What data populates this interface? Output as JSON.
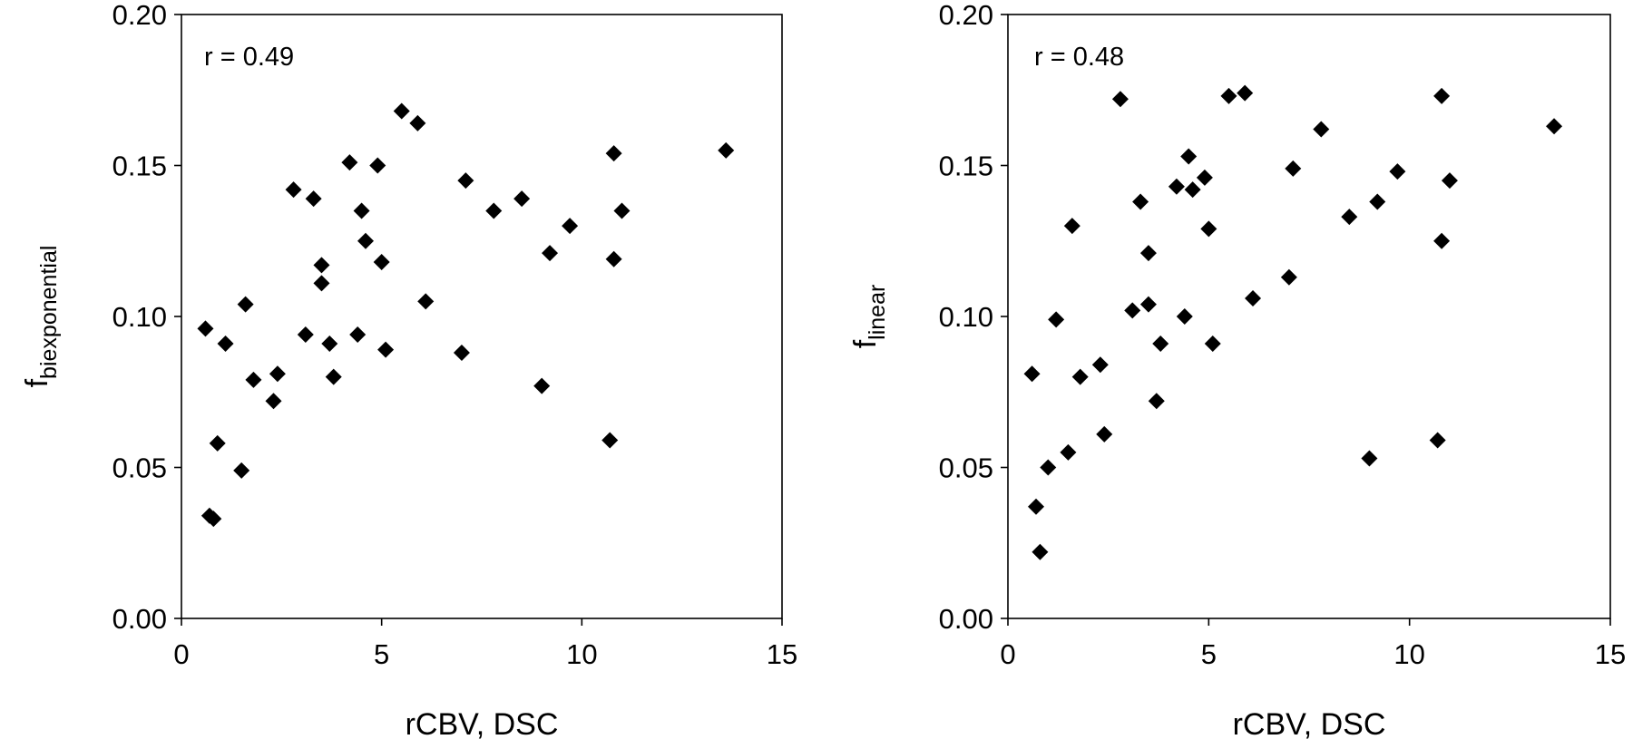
{
  "chart_data": [
    {
      "type": "scatter",
      "xlabel": "rCBV, DSC",
      "ylabel_main": "f",
      "ylabel_sub": "biexponential",
      "annotation": "r = 0.49",
      "xlim": [
        0,
        15
      ],
      "ylim": [
        0,
        0.2
      ],
      "xticks": [
        "0",
        "5",
        "10",
        "15"
      ],
      "yticks": [
        "0.00",
        "0.05",
        "0.10",
        "0.15",
        "0.20"
      ],
      "grid": false,
      "marker": "diamond",
      "x": [
        0.6,
        0.7,
        0.8,
        0.9,
        1.1,
        1.5,
        1.6,
        1.8,
        2.3,
        2.4,
        2.8,
        3.1,
        3.3,
        3.5,
        3.5,
        3.7,
        3.8,
        4.2,
        4.4,
        4.5,
        4.6,
        4.9,
        5.0,
        5.1,
        5.5,
        5.9,
        6.1,
        7.0,
        7.1,
        7.8,
        8.5,
        9.0,
        9.2,
        9.7,
        10.7,
        10.8,
        10.8,
        11.0,
        13.6
      ],
      "y": [
        0.096,
        0.034,
        0.033,
        0.058,
        0.091,
        0.049,
        0.104,
        0.079,
        0.072,
        0.081,
        0.142,
        0.094,
        0.139,
        0.117,
        0.111,
        0.091,
        0.08,
        0.151,
        0.094,
        0.135,
        0.125,
        0.15,
        0.118,
        0.089,
        0.168,
        0.164,
        0.105,
        0.088,
        0.145,
        0.135,
        0.139,
        0.077,
        0.121,
        0.13,
        0.059,
        0.154,
        0.119,
        0.135,
        0.155
      ]
    },
    {
      "type": "scatter",
      "xlabel": "rCBV, DSC",
      "ylabel_main": "f",
      "ylabel_sub": "linear",
      "annotation": "r = 0.48",
      "xlim": [
        0,
        15
      ],
      "ylim": [
        0,
        0.2
      ],
      "xticks": [
        "0",
        "5",
        "10",
        "15"
      ],
      "yticks": [
        "0.00",
        "0.05",
        "0.10",
        "0.15",
        "0.20"
      ],
      "grid": false,
      "marker": "diamond",
      "x": [
        0.6,
        0.7,
        0.8,
        1.0,
        1.2,
        1.5,
        1.6,
        1.8,
        2.3,
        2.4,
        2.8,
        3.1,
        3.3,
        3.5,
        3.5,
        3.7,
        3.8,
        4.2,
        4.4,
        4.5,
        4.6,
        4.9,
        5.0,
        5.1,
        5.5,
        5.9,
        6.1,
        7.0,
        7.1,
        7.8,
        8.5,
        9.0,
        9.2,
        9.7,
        10.7,
        10.8,
        10.8,
        11.0,
        13.6
      ],
      "y": [
        0.081,
        0.037,
        0.022,
        0.05,
        0.099,
        0.055,
        0.13,
        0.08,
        0.084,
        0.061,
        0.172,
        0.102,
        0.138,
        0.104,
        0.121,
        0.072,
        0.091,
        0.143,
        0.1,
        0.153,
        0.142,
        0.146,
        0.129,
        0.091,
        0.173,
        0.174,
        0.106,
        0.113,
        0.149,
        0.162,
        0.133,
        0.053,
        0.138,
        0.148,
        0.059,
        0.173,
        0.125,
        0.145,
        0.163
      ]
    }
  ]
}
